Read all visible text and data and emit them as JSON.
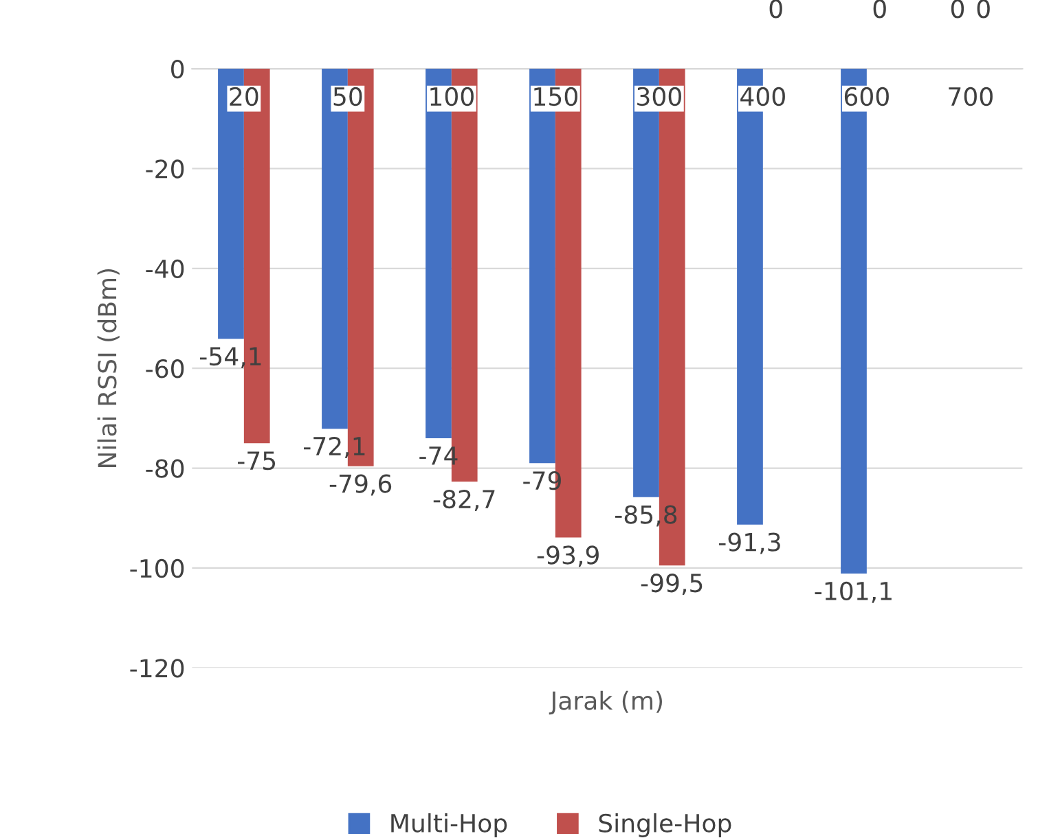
{
  "chart_data": {
    "type": "bar",
    "xlabel": "Jarak (m)",
    "ylabel": "Nilai RSSI (dBm)",
    "categories": [
      "20",
      "50",
      "100",
      "150",
      "300",
      "400",
      "600",
      "700"
    ],
    "series": [
      {
        "name": "Multi-Hop",
        "color": "#4472c4",
        "values": [
          -54.1,
          -72.1,
          -74,
          -79,
          -85.8,
          -91.3,
          -101.1,
          0
        ],
        "value_labels": [
          "-54,1",
          "-72,1",
          "-74",
          "-79",
          "-85,8",
          "-91,3",
          "-101,1",
          "0"
        ]
      },
      {
        "name": "Single-Hop",
        "color": "#c0504d",
        "values": [
          -75,
          -79.6,
          -82.7,
          -93.9,
          -99.5,
          0,
          0,
          0
        ],
        "value_labels": [
          "-75",
          "-79,6",
          "-82,7",
          "-93,9",
          "-99,5",
          "0",
          "0",
          "0"
        ]
      }
    ],
    "ylim": [
      -120,
      0
    ],
    "yticks": [
      -120,
      -100,
      -80,
      -60,
      -40,
      -20,
      0
    ],
    "grid": "y",
    "legend": "bottom"
  }
}
